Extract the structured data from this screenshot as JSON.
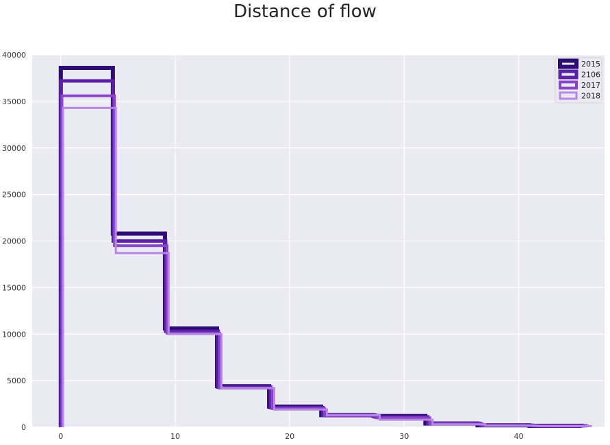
{
  "chart_data": {
    "type": "histogram",
    "title": "Distance of flow",
    "xlabel": "",
    "ylabel": "",
    "xlim": [
      -2.5,
      47.5
    ],
    "ylim": [
      0,
      40000
    ],
    "x_ticks": [
      0,
      10,
      20,
      30,
      40
    ],
    "y_ticks": [
      0,
      5000,
      10000,
      15000,
      20000,
      25000,
      30000,
      35000,
      40000
    ],
    "grid": true,
    "background": "#eaeaf2",
    "legend_position": "upper-right",
    "series": [
      {
        "name": "2015",
        "color": "#2e0c74",
        "stroke": 6,
        "x_start": 0,
        "x_end": 45.5,
        "values": [
          38600,
          20800,
          10600,
          4400,
          2200,
          1300,
          1200,
          400,
          200,
          150
        ]
      },
      {
        "name": "2106",
        "color": "#5b21a6",
        "stroke": 5,
        "x_start": 0,
        "x_end": 45.8,
        "values": [
          37200,
          20000,
          10300,
          4300,
          2100,
          1300,
          1100,
          400,
          200,
          150
        ]
      },
      {
        "name": "2017",
        "color": "#8b45c9",
        "stroke": 4,
        "x_start": 0.1,
        "x_end": 46.0,
        "values": [
          35600,
          19500,
          10100,
          4200,
          2000,
          1200,
          1000,
          350,
          180,
          130
        ]
      },
      {
        "name": "2018",
        "color": "#b788e3",
        "stroke": 3,
        "x_start": 0.2,
        "x_end": 46.3,
        "values": [
          34300,
          18700,
          10000,
          4200,
          1900,
          1300,
          800,
          300,
          160,
          120
        ]
      }
    ]
  }
}
